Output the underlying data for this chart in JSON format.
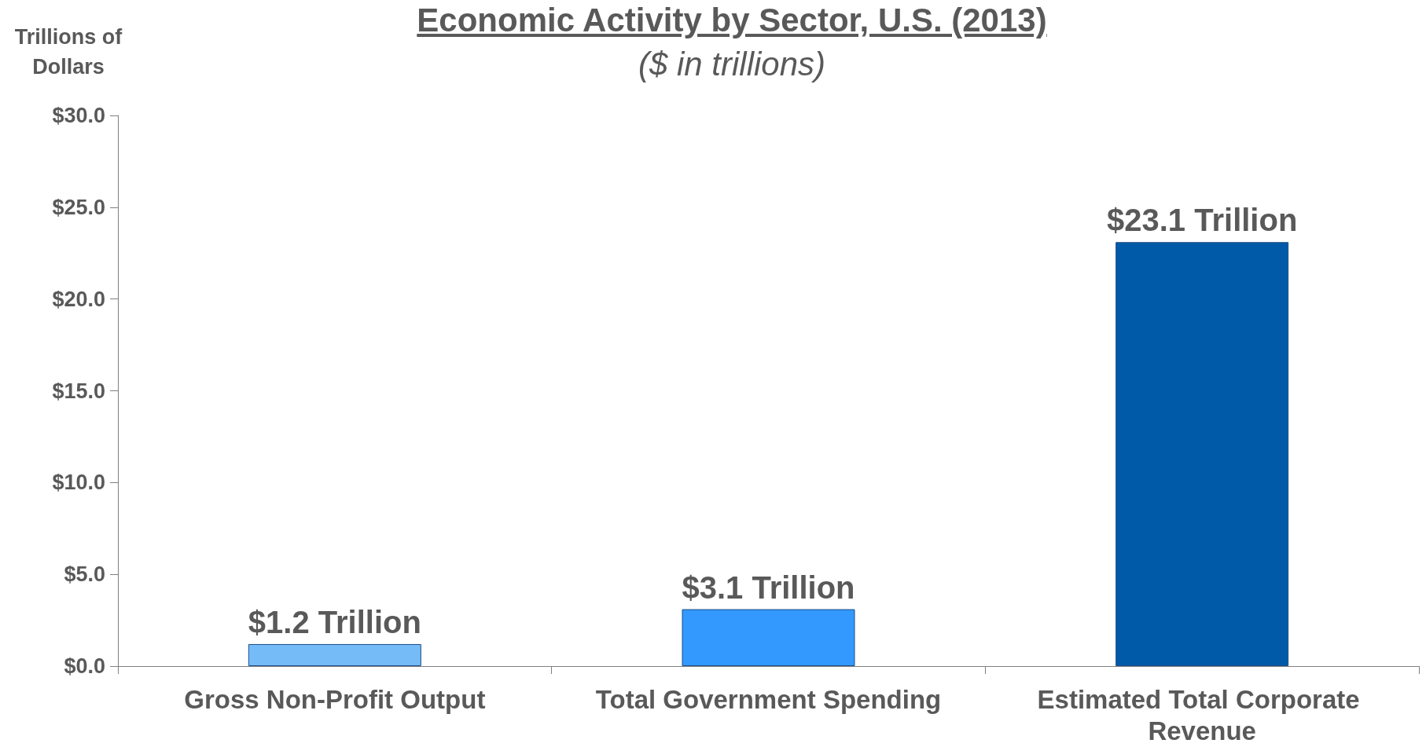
{
  "chart_data": {
    "type": "bar",
    "title": "Economic Activity by Sector, U.S. (2013)",
    "subtitle": "($ in trillions)",
    "ylabel": "Trillions of Dollars",
    "categories": [
      "Gross Non-Profit Output",
      "Total Government Spending",
      "Estimated Total Corporate Revenue"
    ],
    "values": [
      1.2,
      3.1,
      23.1
    ],
    "colors": [
      "#75bbf7",
      "#3399ff",
      "#005aa8"
    ],
    "value_labels": [
      "$1.2 Trillion",
      "$3.1 Trillion",
      "$23.1 Trillion"
    ],
    "ylim": [
      0,
      30
    ],
    "yticks": [
      {
        "value": 0,
        "label": "$0.0"
      },
      {
        "value": 5,
        "label": "$5.0"
      },
      {
        "value": 10,
        "label": "$10.0"
      },
      {
        "value": 15,
        "label": "$15.0"
      },
      {
        "value": 20,
        "label": "$20.0"
      },
      {
        "value": 25,
        "label": "$25.0"
      },
      {
        "value": 30,
        "label": "$30.0"
      }
    ],
    "grid": false
  }
}
